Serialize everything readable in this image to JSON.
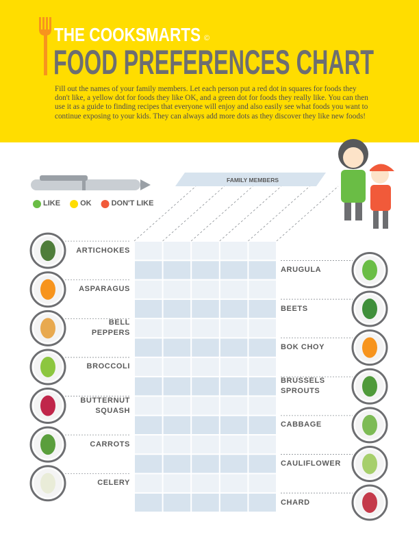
{
  "header": {
    "brand": "THE COOKSMARTS",
    "mark": "©",
    "title": "FOOD PREFERENCES CHART",
    "instructions": "Fill out the names of your family members. Let each person put a red dot in squares for foods they don't like, a yellow dot for foods they like OK, and a green dot for foods they really like. You can then use it as a guide to finding recipes that everyone will enjoy and also easily see what foods you want to continue exposing to your kids. They can always add more dots as they discover they like new foods!"
  },
  "legend": [
    {
      "label": "LIKE",
      "color": "#6abd45"
    },
    {
      "label": "OK",
      "color": "#ffdd00"
    },
    {
      "label": "DON'T LIKE",
      "color": "#f15a3a"
    }
  ],
  "table": {
    "header": "FAMILY MEMBERS",
    "left_foods": [
      "ARTICHOKES",
      "ASPARAGUS",
      "BELL PEPPERS",
      "BROCCOLI",
      "BUTTERNUT SQUASH",
      "CARROTS",
      "CELERY"
    ],
    "right_foods": [
      "ARUGULA",
      "BEETS",
      "BOK CHOY",
      "BRUSSELS SPROUTS",
      "CABBAGE",
      "CAULIFLOWER",
      "CHARD"
    ]
  }
}
